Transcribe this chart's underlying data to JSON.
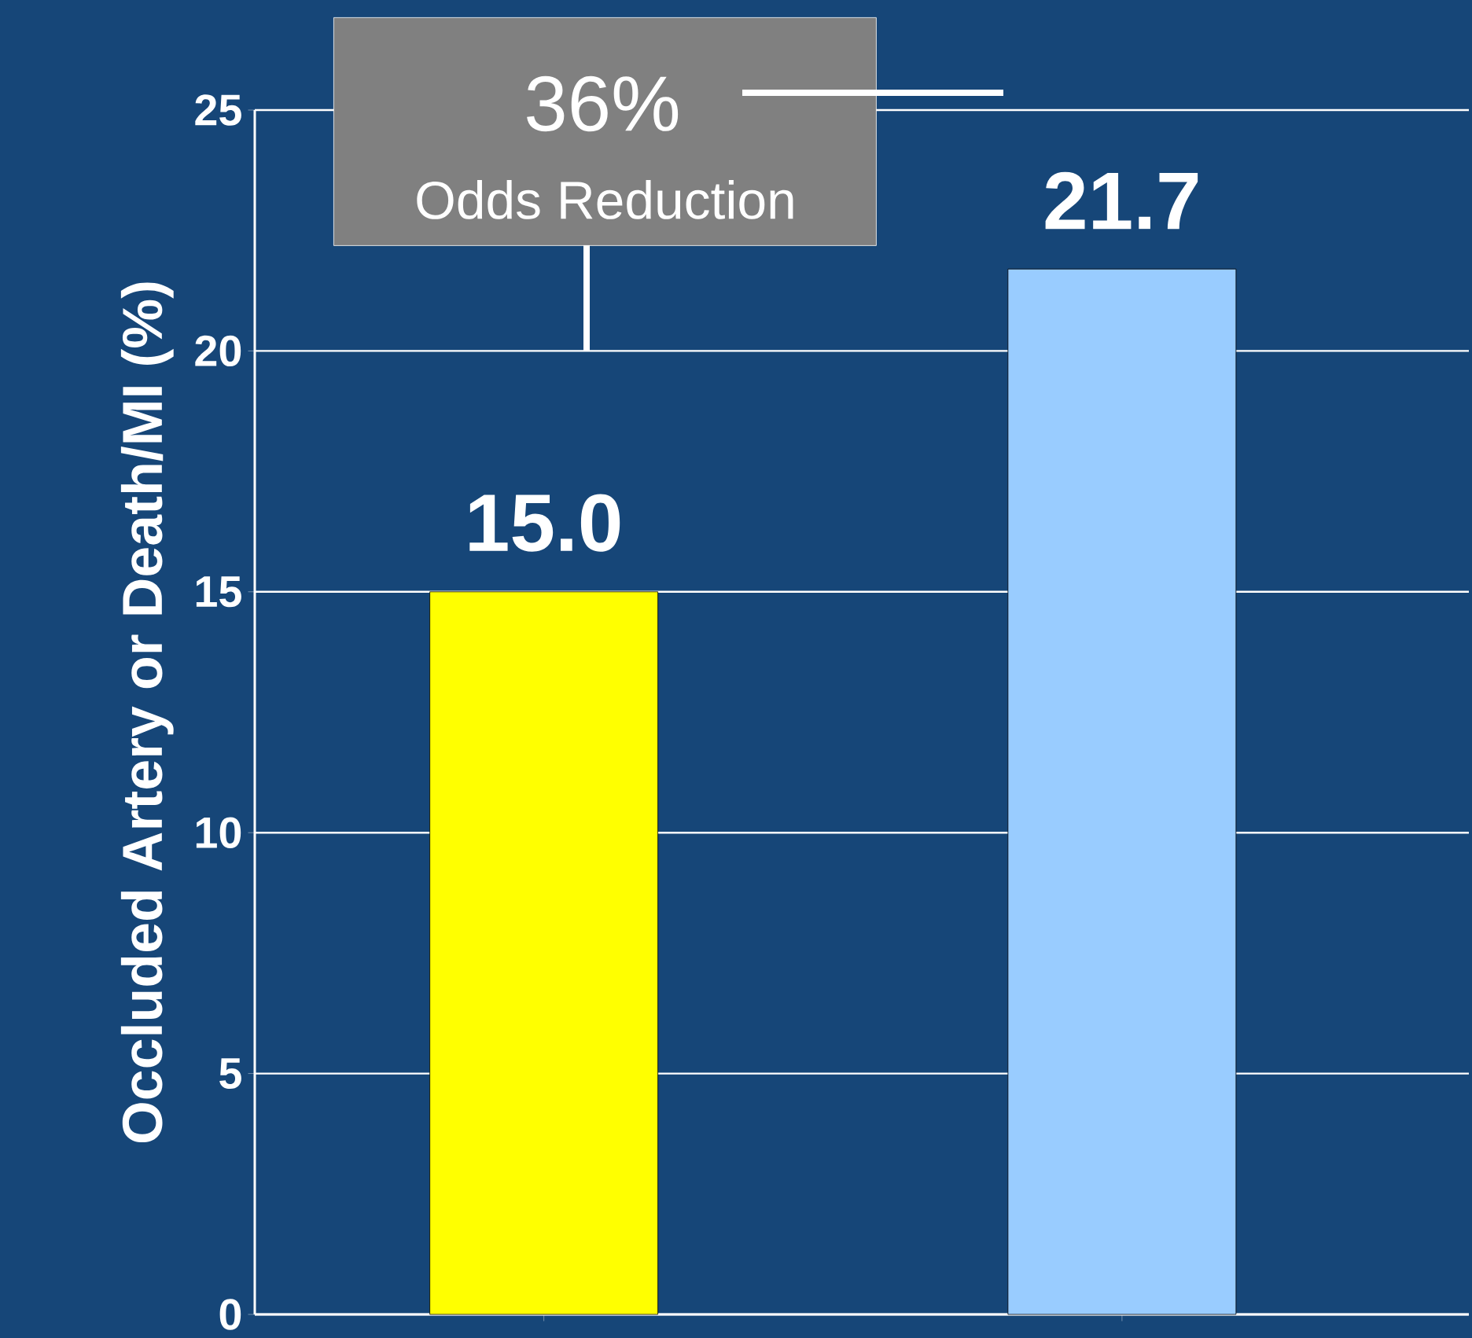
{
  "chart_data": {
    "type": "bar",
    "ylabel": "Occluded Artery or Death/MI (%)",
    "categories": [
      null,
      null
    ],
    "values": [
      15.0,
      21.7
    ],
    "value_labels": [
      "15.0",
      "21.7"
    ],
    "colors": [
      "#ffff00",
      "#99ccff"
    ],
    "ylim": [
      0,
      25
    ],
    "yticks": [
      0,
      5,
      10,
      15,
      20,
      25
    ],
    "grid": "y",
    "annotations": [
      "36%",
      "Odds Reduction"
    ]
  }
}
